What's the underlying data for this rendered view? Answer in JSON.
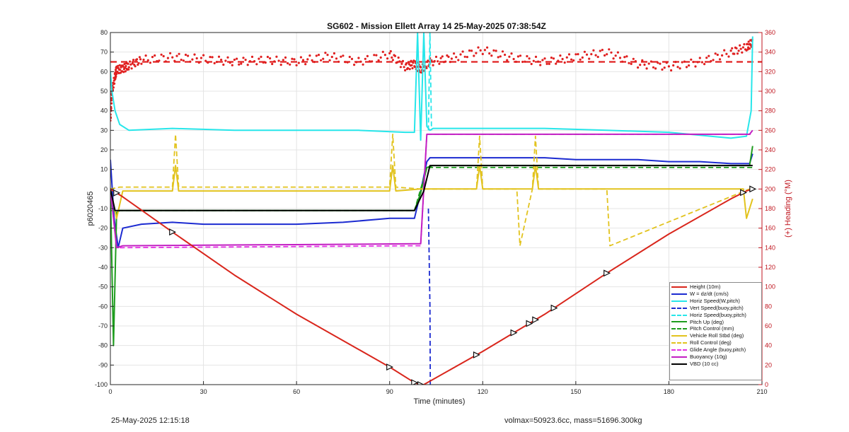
{
  "chart_data": {
    "type": "line",
    "title": "SG602 - Mission Ellett Array 14 25-May-2025 07:38:54Z",
    "xlabel": "Time (minutes)",
    "ylabel": "p6020465",
    "y2label": "(+) Heading (°M)",
    "xlim": [
      0,
      210
    ],
    "ylim": [
      -100,
      80
    ],
    "y2lim": [
      0,
      360
    ],
    "x_ticks": [
      "0",
      "30",
      "60",
      "90",
      "120",
      "150",
      "180",
      "210"
    ],
    "y_ticks": [
      "-100",
      "-90",
      "-80",
      "-70",
      "-60",
      "-50",
      "-40",
      "-30",
      "-20",
      "-10",
      "0",
      "10",
      "20",
      "30",
      "40",
      "50",
      "60",
      "70",
      "80"
    ],
    "y2_ticks": [
      "0",
      "20",
      "40",
      "60",
      "80",
      "100",
      "120",
      "140",
      "160",
      "180",
      "200",
      "220",
      "240",
      "260",
      "280",
      "300",
      "320",
      "340",
      "360"
    ],
    "grid": true,
    "legend_position": "bottom-right",
    "colors": {
      "height": "#d9261c",
      "w": "#1c2bd1",
      "horiz": "#27e6ea",
      "pitch": "#1e9c1e",
      "roll": "#e2c31e",
      "glide": "#e52fe5",
      "buoyancy": "#c21fc2",
      "vbd": "#000000",
      "heading": "#e02020",
      "axis": "#262626",
      "right_axis": "#c0161f"
    },
    "series": [
      {
        "name": "Height (10m)",
        "style": "solid",
        "color": "#d9261c",
        "x": [
          0,
          2,
          4,
          20,
          40,
          60,
          80,
          90,
          98,
          100,
          101,
          120,
          140,
          160,
          180,
          200,
          205,
          207
        ],
        "y": [
          0,
          -2,
          -4,
          -22,
          -44,
          -64,
          -82,
          -91,
          -99,
          -100,
          -100,
          -83,
          -64,
          -43,
          -23,
          -5,
          -1,
          0
        ]
      },
      {
        "name": "W = dz/dt (cm/s)",
        "style": "solid",
        "color": "#1c2bd1",
        "x": [
          0,
          1.2,
          2.5,
          4,
          10,
          20,
          30,
          45,
          60,
          75,
          90,
          98,
          99.5,
          102,
          103,
          110,
          120,
          130,
          140,
          150,
          160,
          170,
          180,
          190,
          200,
          206,
          207
        ],
        "y": [
          15,
          -15,
          -30,
          -20,
          -18,
          -17,
          -18,
          -18,
          -18,
          -17,
          -15,
          -15,
          -5,
          14,
          16,
          16,
          16,
          16,
          16,
          15,
          15,
          15,
          14,
          14,
          13,
          13,
          18
        ]
      },
      {
        "name": "Horiz Speed(W,pitch)",
        "style": "solid",
        "color": "#27e6ea",
        "x": [
          0,
          0.5,
          1.5,
          3,
          6,
          20,
          40,
          60,
          80,
          95,
          98,
          99,
          100,
          101,
          102,
          103,
          104,
          120,
          140,
          160,
          180,
          200,
          205,
          206.5,
          207
        ],
        "y": [
          60,
          50,
          40,
          33,
          30,
          31,
          30,
          30,
          30,
          29,
          29,
          80,
          25,
          80,
          32,
          30,
          31,
          31,
          31,
          30,
          29,
          26,
          27,
          40,
          78
        ]
      },
      {
        "name": "Vert Speed(buoy,pitch)",
        "style": "dashed",
        "color": "#1c2bd1",
        "x": [
          102.5,
          103,
          103.1,
          103.5
        ],
        "y": [
          -10,
          -60,
          -100,
          -100
        ]
      },
      {
        "name": "Horiz Speed(buoy,pitch)",
        "style": "dashed",
        "color": "#27e6ea",
        "x": [
          102.5,
          103,
          103.5
        ],
        "y": [
          30,
          80,
          30
        ]
      },
      {
        "name": "Pitch Up (deg)",
        "style": "solid",
        "color": "#1e9c1e",
        "x": [
          0,
          1,
          2,
          3,
          5,
          20,
          50,
          80,
          98,
          100,
          102,
          104,
          120,
          150,
          180,
          206,
          207
        ],
        "y": [
          0,
          -80,
          -12,
          -11,
          -11,
          -11,
          -11,
          -11,
          -11,
          -2,
          11,
          12,
          12,
          12,
          12,
          12,
          22
        ]
      },
      {
        "name": "Pitch Control (mm)",
        "style": "dashed",
        "color": "#1e9c1e",
        "x": [
          0,
          3,
          98,
          102,
          207
        ],
        "y": [
          -11,
          -11,
          -11,
          11,
          11
        ]
      },
      {
        "name": "Vehicle Roll Stbd (deg)",
        "style": "solid",
        "color": "#e2c31e",
        "x": [
          0,
          2,
          4,
          20,
          21,
          22,
          90,
          91,
          92,
          100,
          110,
          118,
          119,
          120,
          136,
          137,
          138,
          160,
          180,
          204,
          205,
          207
        ],
        "y": [
          0,
          -15,
          -1,
          -1,
          12,
          -1,
          -1,
          12,
          -1,
          0,
          0,
          0,
          12,
          0,
          0,
          12,
          0,
          0,
          0,
          0,
          -15,
          -5
        ]
      },
      {
        "name": "Roll Control (deg)",
        "style": "dashed",
        "color": "#e2c31e",
        "x": [
          0,
          3,
          4,
          20,
          21,
          22,
          90,
          91,
          92,
          100,
          118,
          119,
          120,
          131,
          132,
          136,
          137,
          138,
          160,
          161,
          206
        ],
        "y": [
          0,
          1,
          1,
          1,
          28,
          1,
          1,
          28,
          1,
          0,
          0,
          27,
          0,
          0,
          -29,
          0,
          27,
          0,
          0,
          -29,
          0
        ]
      },
      {
        "name": "Glide Angle (buoy,pitch)",
        "style": "dashed",
        "color": "#e52fe5",
        "x": [
          0,
          2,
          4,
          98,
          100,
          102,
          103,
          207
        ],
        "y": [
          0,
          -30,
          -30,
          -29,
          -29,
          28,
          28,
          28
        ]
      },
      {
        "name": "Buoyancy (10g)",
        "style": "solid",
        "color": "#c21fc2",
        "x": [
          0,
          2,
          4,
          98,
          100,
          102,
          103,
          206,
          207
        ],
        "y": [
          0,
          -30,
          -29,
          -28,
          -28,
          28,
          28,
          28,
          30
        ]
      },
      {
        "name": "VBD (10 cc)",
        "style": "solid",
        "color": "#000000",
        "x": [
          0,
          1.5,
          4,
          98,
          101,
          103,
          205,
          207
        ],
        "y": [
          0,
          -11,
          -11,
          -11,
          -1,
          12,
          12,
          12
        ]
      }
    ],
    "heading": {
      "name": "(+) Heading",
      "axis": "right",
      "color": "#e02020",
      "x": [
        0,
        0.5,
        1.5,
        2,
        4,
        6,
        10,
        20,
        30,
        40,
        50,
        60,
        70,
        80,
        90,
        95,
        98,
        100,
        103,
        110,
        120,
        130,
        140,
        150,
        160,
        170,
        180,
        190,
        200,
        205,
        207
      ],
      "y": [
        270,
        300,
        315,
        322,
        323,
        326,
        332,
        335,
        333,
        330,
        332,
        330,
        336,
        330,
        338,
        325,
        328,
        322,
        330,
        334,
        342,
        334,
        330,
        335,
        340,
        328,
        325,
        330,
        340,
        345,
        350
      ]
    },
    "heading_mean": 330
  },
  "footer": {
    "date": "25-May-2025 12:15:18",
    "info": "volmax=50923.6cc, mass=51696.300kg"
  }
}
